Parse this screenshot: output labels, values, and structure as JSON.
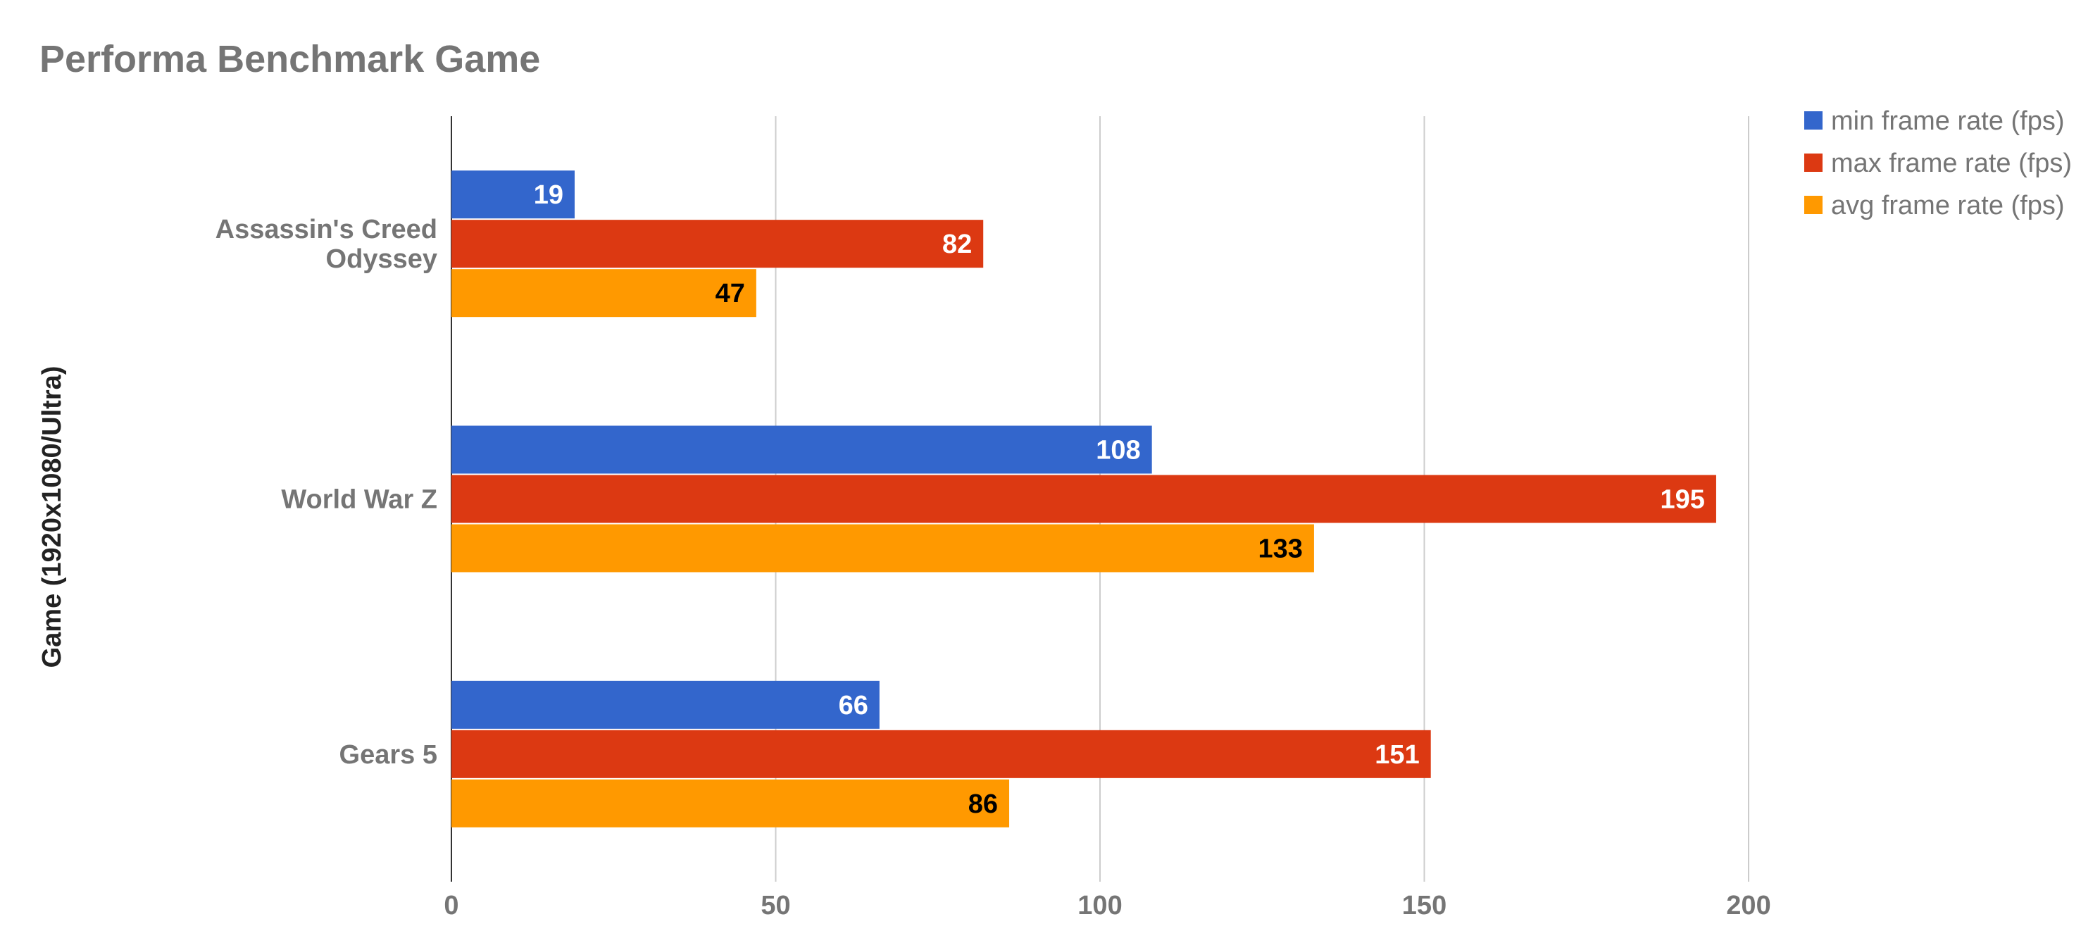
{
  "chart_data": {
    "type": "bar",
    "orientation": "horizontal",
    "title": "Performa Benchmark Game",
    "xlabel": "",
    "ylabel": "Game (1920x1080/Ultra)",
    "categories": [
      "Assassin's Creed Odyssey",
      "World War Z",
      "Gears 5"
    ],
    "category_lines": [
      [
        "Assassin's Creed",
        "Odyssey"
      ],
      [
        "World War Z"
      ],
      [
        "Gears 5"
      ]
    ],
    "series": [
      {
        "name": "min frame rate (fps)",
        "values": [
          19,
          108,
          66
        ],
        "color": "#3366cc",
        "label_color": "#ffffff"
      },
      {
        "name": "max frame rate (fps)",
        "values": [
          82,
          195,
          151
        ],
        "color": "#dc3912",
        "label_color": "#ffffff"
      },
      {
        "name": "avg frame rate (fps)",
        "values": [
          47,
          133,
          86
        ],
        "color": "#ff9900",
        "label_color": "#000000"
      }
    ],
    "xlim": [
      0,
      200
    ],
    "xticks": [
      0,
      50,
      100,
      150,
      200
    ],
    "xtick_labels": [
      "0",
      "50",
      "100",
      "150",
      "200"
    ],
    "grid": true,
    "legend_position": "top-right",
    "data_labels": true
  }
}
